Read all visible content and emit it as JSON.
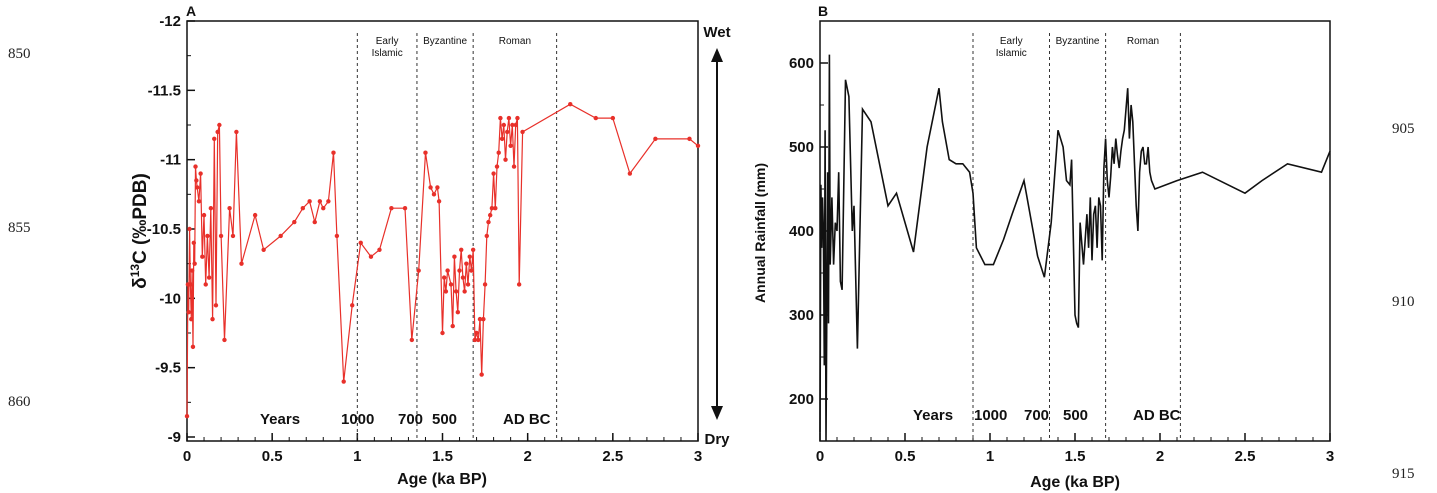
{
  "line_numbers": {
    "left": [
      "850",
      "855",
      "860"
    ],
    "right": [
      "905",
      "910",
      "915"
    ]
  },
  "chart_data": [
    {
      "panel": "A",
      "type": "line",
      "xlabel": "Age (ka BP)",
      "ylabel": "δ13C (‰PDB)",
      "ylabel_main": "δ",
      "ylabel_sup": "13",
      "ylabel_rest": "C (‰PDB)",
      "xlim": [
        0,
        3
      ],
      "ylim": [
        -9,
        -12
      ],
      "y_reversed": true,
      "x_ticks": [
        "0",
        "0.5",
        "1",
        "1.5",
        "2",
        "2.5",
        "3"
      ],
      "y_ticks": [
        "-9",
        "-9.5",
        "-10",
        "-10.5",
        "-11",
        "-11.5",
        "-12"
      ],
      "y_tick_values": [
        -9,
        -9.5,
        -10,
        -10.5,
        -11,
        -11.5,
        -12
      ],
      "x_tick_values": [
        0,
        0.5,
        1,
        1.5,
        2,
        2.5,
        3
      ],
      "y_minor_tick_labels": false,
      "color": "#e8302a",
      "markers": true,
      "series": [
        {
          "x": [
            0.0,
            0.005,
            0.01,
            0.015,
            0.02,
            0.025,
            0.03,
            0.035,
            0.04,
            0.045,
            0.05,
            0.055,
            0.06,
            0.07,
            0.08,
            0.09,
            0.1,
            0.11,
            0.12,
            0.13,
            0.14,
            0.15,
            0.16,
            0.17,
            0.18,
            0.19,
            0.2,
            0.22,
            0.25,
            0.27,
            0.29,
            0.32,
            0.4,
            0.45,
            0.55,
            0.63,
            0.68,
            0.72,
            0.75,
            0.78,
            0.8,
            0.83,
            0.86,
            0.88,
            0.92,
            0.97,
            1.02,
            1.08,
            1.13,
            1.2,
            1.28,
            1.32,
            1.36,
            1.4,
            1.43,
            1.45,
            1.47,
            1.48,
            1.5,
            1.51,
            1.52,
            1.53,
            1.55,
            1.56,
            1.57,
            1.58,
            1.59,
            1.6,
            1.61,
            1.62,
            1.63,
            1.64,
            1.65,
            1.66,
            1.67,
            1.68,
            1.69,
            1.7,
            1.71,
            1.72,
            1.73,
            1.74,
            1.75,
            1.76,
            1.77,
            1.78,
            1.79,
            1.8,
            1.81,
            1.82,
            1.83,
            1.84,
            1.85,
            1.86,
            1.87,
            1.88,
            1.89,
            1.9,
            1.91,
            1.92,
            1.93,
            1.94,
            1.95,
            1.97,
            2.25,
            2.4,
            2.5,
            2.6,
            2.75,
            2.95,
            3.0
          ],
          "y": [
            -9.15,
            -10.1,
            -9.9,
            -10.5,
            -10.1,
            -9.85,
            -10.2,
            -9.65,
            -10.4,
            -10.25,
            -10.95,
            -10.85,
            -10.8,
            -10.7,
            -10.9,
            -10.3,
            -10.6,
            -10.1,
            -10.45,
            -10.15,
            -10.65,
            -9.85,
            -11.15,
            -9.95,
            -11.2,
            -11.25,
            -10.45,
            -9.7,
            -10.65,
            -10.45,
            -11.2,
            -10.25,
            -10.6,
            -10.35,
            -10.45,
            -10.55,
            -10.65,
            -10.7,
            -10.55,
            -10.7,
            -10.65,
            -10.7,
            -11.05,
            -10.45,
            -9.4,
            -9.95,
            -10.4,
            -10.3,
            -10.35,
            -10.65,
            -10.65,
            -9.7,
            -10.2,
            -11.05,
            -10.8,
            -10.75,
            -10.8,
            -10.7,
            -9.75,
            -10.15,
            -10.05,
            -10.2,
            -10.1,
            -9.8,
            -10.3,
            -10.05,
            -9.9,
            -10.2,
            -10.35,
            -10.15,
            -10.05,
            -10.25,
            -10.1,
            -10.3,
            -10.2,
            -10.35,
            -9.7,
            -9.75,
            -9.7,
            -9.85,
            -9.45,
            -9.85,
            -10.1,
            -10.45,
            -10.55,
            -10.6,
            -10.65,
            -10.9,
            -10.65,
            -10.95,
            -11.05,
            -11.3,
            -11.15,
            -11.25,
            -11.0,
            -11.2,
            -11.3,
            -11.1,
            -11.25,
            -10.95,
            -11.25,
            -11.3,
            -10.1,
            -11.2,
            -11.4,
            -11.3,
            -11.3,
            -10.9,
            -11.15,
            -11.15,
            -11.1
          ]
        }
      ],
      "periods": [
        {
          "label": "Early",
          "label2": "Islamic",
          "x_start": 1.0,
          "x_end": 1.35
        },
        {
          "label": "Byzantine",
          "label2": "",
          "x_start": 1.35,
          "x_end": 1.68
        },
        {
          "label": "Roman",
          "label2": "",
          "x_start": 1.68,
          "x_end": 2.17
        }
      ],
      "era_labels": {
        "years": "Years",
        "y1000": "1000",
        "y700": "700",
        "y500": "500",
        "adbc": "AD BC"
      },
      "side_labels": {
        "top": "Wet",
        "bottom": "Dry"
      }
    },
    {
      "panel": "B",
      "type": "line",
      "xlabel": "Age (ka BP)",
      "ylabel": "Annual Rainfall (mm)",
      "xlim": [
        0,
        3
      ],
      "ylim": [
        150,
        650
      ],
      "x_ticks": [
        "0",
        "0.5",
        "1",
        "1.5",
        "2",
        "2.5",
        "3"
      ],
      "x_tick_values": [
        0,
        0.5,
        1,
        1.5,
        2,
        2.5,
        3
      ],
      "y_ticks": [
        "200",
        "300",
        "400",
        "500",
        "600"
      ],
      "y_tick_values": [
        200,
        300,
        400,
        500,
        600
      ],
      "color": "#111111",
      "markers": false,
      "series": [
        {
          "x": [
            0.0,
            0.005,
            0.01,
            0.015,
            0.02,
            0.025,
            0.03,
            0.035,
            0.04,
            0.045,
            0.05,
            0.055,
            0.06,
            0.07,
            0.08,
            0.09,
            0.1,
            0.11,
            0.12,
            0.13,
            0.15,
            0.17,
            0.19,
            0.2,
            0.22,
            0.25,
            0.3,
            0.4,
            0.45,
            0.55,
            0.63,
            0.7,
            0.72,
            0.76,
            0.8,
            0.84,
            0.88,
            0.9,
            0.92,
            0.97,
            1.02,
            1.08,
            1.13,
            1.2,
            1.28,
            1.32,
            1.36,
            1.4,
            1.43,
            1.45,
            1.47,
            1.48,
            1.5,
            1.51,
            1.52,
            1.53,
            1.55,
            1.56,
            1.57,
            1.58,
            1.59,
            1.6,
            1.61,
            1.62,
            1.63,
            1.64,
            1.65,
            1.66,
            1.67,
            1.68,
            1.69,
            1.7,
            1.71,
            1.72,
            1.73,
            1.74,
            1.75,
            1.76,
            1.77,
            1.78,
            1.79,
            1.8,
            1.81,
            1.82,
            1.83,
            1.84,
            1.85,
            1.86,
            1.87,
            1.88,
            1.89,
            1.9,
            1.91,
            1.92,
            1.93,
            1.94,
            1.95,
            1.97,
            2.1,
            2.25,
            2.4,
            2.5,
            2.6,
            2.75,
            2.95,
            3.0
          ],
          "y": [
            160,
            455,
            380,
            440,
            400,
            240,
            520,
            150,
            300,
            470,
            290,
            610,
            360,
            440,
            360,
            410,
            400,
            470,
            340,
            330,
            580,
            560,
            400,
            430,
            260,
            545,
            530,
            430,
            445,
            375,
            500,
            570,
            530,
            485,
            480,
            480,
            470,
            445,
            380,
            360,
            360,
            390,
            420,
            460,
            370,
            345,
            410,
            520,
            500,
            460,
            455,
            485,
            300,
            290,
            285,
            410,
            360,
            390,
            420,
            380,
            440,
            365,
            420,
            430,
            380,
            440,
            430,
            365,
            475,
            510,
            460,
            440,
            465,
            500,
            480,
            510,
            490,
            475,
            495,
            510,
            520,
            545,
            570,
            510,
            550,
            530,
            480,
            430,
            400,
            470,
            495,
            500,
            480,
            480,
            500,
            470,
            460,
            450,
            460,
            470,
            455,
            445,
            460,
            480,
            470,
            495
          ]
        }
      ],
      "periods": [
        {
          "label": "Early",
          "label2": "Islamic",
          "x_start": 0.9,
          "x_end": 1.35
        },
        {
          "label": "Byzantine",
          "label2": "",
          "x_start": 1.35,
          "x_end": 1.68
        },
        {
          "label": "Roman",
          "label2": "",
          "x_start": 1.68,
          "x_end": 2.12
        }
      ],
      "era_labels": {
        "years": "Years",
        "y1000": "1000",
        "y700": "700",
        "y500": "500",
        "adbc": "AD BC"
      }
    }
  ]
}
